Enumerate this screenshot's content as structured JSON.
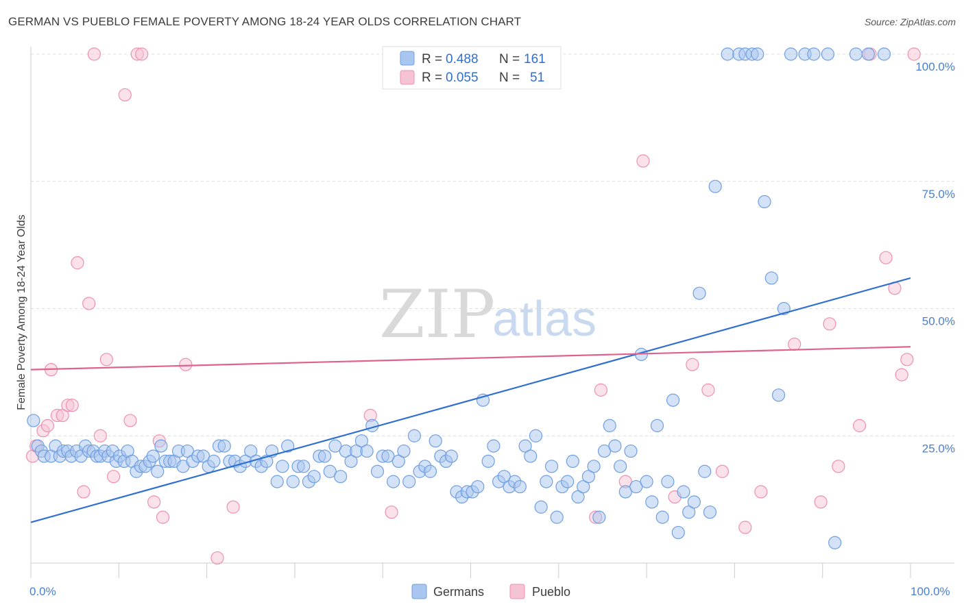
{
  "title": "GERMAN VS PUEBLO FEMALE POVERTY AMONG 18-24 YEAR OLDS CORRELATION CHART",
  "source": "Source: ZipAtlas.com",
  "watermark": {
    "zip": "ZIP",
    "atlas": "atlas"
  },
  "colors": {
    "german": "#6f9fe0",
    "german_fill": "#a9c6f0",
    "pueblo": "#ef8fb0",
    "pueblo_fill": "#f6c3d5",
    "german_line": "#2f6fd0",
    "pueblo_line": "#e0628c"
  },
  "legend_box": {
    "rows": [
      {
        "r_label": "R =",
        "r_value": "0.488",
        "n_label": "N =",
        "n_value": "161"
      },
      {
        "r_label": "R =",
        "r_value": "0.055",
        "n_label": "N =",
        "n_value": "51"
      }
    ]
  },
  "bottom_legend": [
    "Germans",
    "Pueblo"
  ],
  "chart_data": {
    "type": "scatter",
    "title": "GERMAN VS PUEBLO FEMALE POVERTY AMONG 18-24 YEAR OLDS CORRELATION CHART",
    "xlabel": "",
    "ylabel": "Female Poverty Among 18-24 Year Olds",
    "xlim": [
      0,
      100
    ],
    "ylim": [
      0,
      100
    ],
    "x_tick_labels": [
      "0.0%",
      "100.0%"
    ],
    "y_ticks": [
      25,
      50,
      75,
      100
    ],
    "y_tick_labels": [
      "25.0%",
      "50.0%",
      "75.0%",
      "100.0%"
    ],
    "grid": true,
    "legend_position": "top-center",
    "series": [
      {
        "name": "Germans",
        "trend": [
          [
            0,
            8
          ],
          [
            100,
            56
          ]
        ],
        "points": [
          [
            0.3,
            28
          ],
          [
            0.8,
            23
          ],
          [
            1.2,
            22
          ],
          [
            1.5,
            21
          ],
          [
            2.3,
            21
          ],
          [
            2.8,
            23
          ],
          [
            3.3,
            21
          ],
          [
            3.7,
            22
          ],
          [
            4.2,
            22
          ],
          [
            4.6,
            21
          ],
          [
            5.2,
            22
          ],
          [
            5.7,
            21
          ],
          [
            6.2,
            23
          ],
          [
            6.6,
            22
          ],
          [
            7.1,
            22
          ],
          [
            7.5,
            21
          ],
          [
            7.9,
            21
          ],
          [
            8.4,
            22
          ],
          [
            8.8,
            21
          ],
          [
            9.3,
            22
          ],
          [
            9.7,
            20
          ],
          [
            10.1,
            21
          ],
          [
            10.6,
            20
          ],
          [
            11.0,
            22
          ],
          [
            11.5,
            20
          ],
          [
            12.0,
            18
          ],
          [
            12.5,
            19
          ],
          [
            13.0,
            19
          ],
          [
            13.5,
            20
          ],
          [
            13.9,
            21
          ],
          [
            14.4,
            18
          ],
          [
            14.8,
            23
          ],
          [
            15.3,
            20
          ],
          [
            15.8,
            20
          ],
          [
            16.3,
            20
          ],
          [
            16.8,
            22
          ],
          [
            17.3,
            19
          ],
          [
            17.8,
            22
          ],
          [
            18.4,
            20
          ],
          [
            19.0,
            21
          ],
          [
            19.6,
            21
          ],
          [
            20.2,
            19
          ],
          [
            20.8,
            20
          ],
          [
            21.4,
            23
          ],
          [
            22.0,
            23
          ],
          [
            22.6,
            20
          ],
          [
            23.2,
            20
          ],
          [
            23.8,
            19
          ],
          [
            24.4,
            20
          ],
          [
            25.0,
            22
          ],
          [
            25.6,
            20
          ],
          [
            26.2,
            19
          ],
          [
            26.8,
            20
          ],
          [
            27.4,
            22
          ],
          [
            28.0,
            16
          ],
          [
            28.6,
            19
          ],
          [
            29.2,
            23
          ],
          [
            29.8,
            16
          ],
          [
            30.4,
            19
          ],
          [
            31.0,
            19
          ],
          [
            31.6,
            16
          ],
          [
            32.2,
            17
          ],
          [
            32.8,
            21
          ],
          [
            33.4,
            21
          ],
          [
            34.0,
            18
          ],
          [
            34.6,
            23
          ],
          [
            35.2,
            17
          ],
          [
            35.8,
            22
          ],
          [
            36.4,
            20
          ],
          [
            37.0,
            22
          ],
          [
            37.6,
            24
          ],
          [
            38.2,
            22
          ],
          [
            38.8,
            27
          ],
          [
            39.4,
            18
          ],
          [
            40.0,
            21
          ],
          [
            40.6,
            21
          ],
          [
            41.2,
            16
          ],
          [
            41.8,
            20
          ],
          [
            42.4,
            22
          ],
          [
            43.0,
            16
          ],
          [
            43.6,
            25
          ],
          [
            44.2,
            18
          ],
          [
            44.8,
            19
          ],
          [
            45.4,
            18
          ],
          [
            46.0,
            24
          ],
          [
            46.6,
            21
          ],
          [
            47.2,
            20
          ],
          [
            47.8,
            21
          ],
          [
            48.4,
            14
          ],
          [
            49.0,
            13
          ],
          [
            49.6,
            14
          ],
          [
            50.2,
            14
          ],
          [
            50.8,
            15
          ],
          [
            51.4,
            32
          ],
          [
            52.0,
            20
          ],
          [
            52.6,
            23
          ],
          [
            53.2,
            16
          ],
          [
            53.8,
            17
          ],
          [
            54.4,
            15
          ],
          [
            55.0,
            16
          ],
          [
            55.6,
            15
          ],
          [
            56.2,
            23
          ],
          [
            56.8,
            21
          ],
          [
            57.4,
            25
          ],
          [
            58.0,
            11
          ],
          [
            58.6,
            16
          ],
          [
            59.2,
            19
          ],
          [
            59.8,
            9
          ],
          [
            60.4,
            15
          ],
          [
            61.0,
            16
          ],
          [
            61.6,
            20
          ],
          [
            62.2,
            13
          ],
          [
            62.8,
            15
          ],
          [
            63.4,
            17
          ],
          [
            64.0,
            19
          ],
          [
            64.6,
            9
          ],
          [
            65.2,
            22
          ],
          [
            65.8,
            27
          ],
          [
            66.4,
            23
          ],
          [
            67.0,
            19
          ],
          [
            67.6,
            14
          ],
          [
            68.2,
            22
          ],
          [
            68.8,
            15
          ],
          [
            69.4,
            41
          ],
          [
            70.0,
            16
          ],
          [
            70.6,
            12
          ],
          [
            71.2,
            27
          ],
          [
            71.8,
            9
          ],
          [
            72.4,
            16
          ],
          [
            73.0,
            32
          ],
          [
            73.6,
            6
          ],
          [
            74.2,
            14
          ],
          [
            74.8,
            10
          ],
          [
            75.4,
            12
          ],
          [
            76.0,
            53
          ],
          [
            76.6,
            18
          ],
          [
            77.2,
            10
          ],
          [
            77.8,
            74
          ],
          [
            79.2,
            100
          ],
          [
            80.5,
            100
          ],
          [
            81.2,
            100
          ],
          [
            82.0,
            100
          ],
          [
            82.6,
            100
          ],
          [
            83.4,
            71
          ],
          [
            84.2,
            56
          ],
          [
            85.0,
            33
          ],
          [
            85.6,
            50
          ],
          [
            86.4,
            100
          ],
          [
            88.0,
            100
          ],
          [
            89.0,
            100
          ],
          [
            90.6,
            100
          ],
          [
            91.4,
            4
          ],
          [
            93.8,
            100
          ],
          [
            95.2,
            100
          ],
          [
            97.0,
            100
          ]
        ]
      },
      {
        "name": "Pueblo",
        "trend": [
          [
            0,
            38
          ],
          [
            100,
            42.5
          ]
        ],
        "points": [
          [
            0.2,
            21
          ],
          [
            0.6,
            23
          ],
          [
            1.4,
            26
          ],
          [
            1.9,
            27
          ],
          [
            2.3,
            38
          ],
          [
            3.0,
            29
          ],
          [
            3.6,
            29
          ],
          [
            4.2,
            31
          ],
          [
            4.7,
            31
          ],
          [
            5.3,
            59
          ],
          [
            6.0,
            14
          ],
          [
            6.6,
            51
          ],
          [
            7.2,
            100
          ],
          [
            7.9,
            25
          ],
          [
            8.6,
            40
          ],
          [
            9.4,
            17
          ],
          [
            10.7,
            92
          ],
          [
            11.3,
            28
          ],
          [
            12.1,
            100
          ],
          [
            12.6,
            100
          ],
          [
            14.0,
            12
          ],
          [
            14.6,
            24
          ],
          [
            15.0,
            9
          ],
          [
            17.6,
            39
          ],
          [
            21.2,
            1
          ],
          [
            23.0,
            11
          ],
          [
            38.6,
            29
          ],
          [
            41.0,
            10
          ],
          [
            46.2,
            100
          ],
          [
            64.2,
            9
          ],
          [
            64.8,
            34
          ],
          [
            67.6,
            16
          ],
          [
            69.6,
            79
          ],
          [
            73.2,
            13
          ],
          [
            75.2,
            39
          ],
          [
            77.0,
            34
          ],
          [
            78.6,
            18
          ],
          [
            81.2,
            7
          ],
          [
            83.0,
            14
          ],
          [
            86.8,
            43
          ],
          [
            89.8,
            12
          ],
          [
            90.8,
            47
          ],
          [
            91.8,
            19
          ],
          [
            94.2,
            27
          ],
          [
            95.4,
            100
          ],
          [
            97.2,
            60
          ],
          [
            98.2,
            54
          ],
          [
            99.0,
            37
          ],
          [
            99.6,
            40
          ],
          [
            100.4,
            100
          ]
        ]
      }
    ]
  }
}
